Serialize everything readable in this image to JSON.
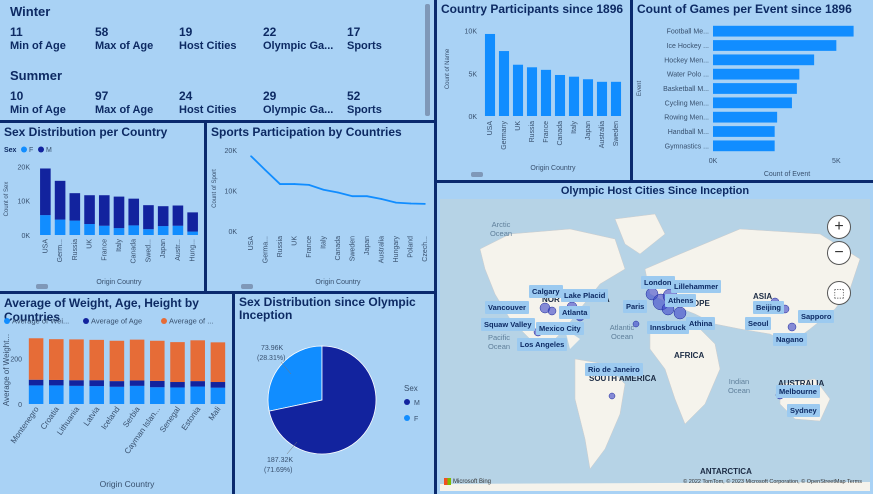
{
  "kpis": {
    "winter": {
      "title": "Winter",
      "items": [
        {
          "value": "11",
          "label": "Min of Age"
        },
        {
          "value": "58",
          "label": "Max of Age"
        },
        {
          "value": "19",
          "label": "Host Cities"
        },
        {
          "value": "22",
          "label": "Olympic Ga..."
        },
        {
          "value": "17",
          "label": "Sports"
        }
      ]
    },
    "summer": {
      "title": "Summer",
      "items": [
        {
          "value": "10",
          "label": "Min of Age"
        },
        {
          "value": "97",
          "label": "Max of Age"
        },
        {
          "value": "24",
          "label": "Host Cities"
        },
        {
          "value": "29",
          "label": "Olympic Ga..."
        },
        {
          "value": "52",
          "label": "Sports"
        }
      ]
    }
  },
  "colors": {
    "panel_bg": "#a9d2f5",
    "page_bg": "#0a2a6e",
    "bright_blue": "#118dff",
    "dark_blue": "#12239e",
    "orange": "#e66c37",
    "title": "#0d2a63"
  },
  "map": {
    "title": "Olympic Host Cities Since Inception",
    "cities": [
      "Calgary",
      "Lake Placid",
      "Vancouver",
      "Squaw Valley",
      "Atlanta",
      "Mexico City",
      "Los Angeles",
      "London",
      "Lillehammer",
      "Paris",
      "Athens",
      "Innsbruck",
      "Athina",
      "Beijing",
      "Seoul",
      "Sapporo",
      "Nagano",
      "Rio de Janeiro",
      "Melbourne",
      "Sydney"
    ],
    "regions": [
      "NORTH AMERICA",
      "EUROPE",
      "ASIA",
      "AFRICA",
      "SOUTH AMERICA",
      "AUSTRALIA",
      "ANTARCTICA"
    ],
    "oceans": [
      "Arctic Ocean",
      "Atlantic Ocean",
      "Pacific Ocean",
      "Indian Ocean"
    ],
    "footer": "© 2022 TomTom, © 2023 Microsoft Corporation, © OpenStreetMap  Terms",
    "brand": "Microsoft Bing",
    "controls": [
      "zoom-in",
      "zoom-out",
      "select"
    ]
  },
  "chart_data": [
    {
      "id": "country_participants",
      "type": "bar",
      "title": "Country Participants since 1896",
      "xlabel": "Origin Country",
      "ylabel": "Count of Name",
      "ylim": [
        0,
        11000
      ],
      "yticks": [
        "0K",
        "5K",
        "10K"
      ],
      "categories": [
        "USA",
        "Germany",
        "UK",
        "Russia",
        "France",
        "Canada",
        "Italy",
        "Japan",
        "Australia",
        "Sweden"
      ],
      "values": [
        9600,
        7600,
        6000,
        5700,
        5400,
        4800,
        4600,
        4300,
        4000,
        4000
      ]
    },
    {
      "id": "games_per_event",
      "type": "bar",
      "orientation": "horizontal",
      "title": "Count of Games per Event since 1896",
      "xlabel": "Count of Event",
      "ylabel": "Event",
      "xlim": [
        0,
        6000
      ],
      "xticks": [
        "0K",
        "5K"
      ],
      "categories": [
        "Football Me...",
        "Ice Hockey ...",
        "Hockey Men...",
        "Water Polo ...",
        "Basketball M...",
        "Cycling Men...",
        "Rowing Men...",
        "Handball M...",
        "Gymnastics ..."
      ],
      "values": [
        5700,
        5000,
        4100,
        3500,
        3400,
        3200,
        2600,
        2500,
        2500
      ]
    },
    {
      "id": "sex_per_country",
      "type": "bar",
      "stacked": true,
      "title": "Sex Distribution per Country",
      "legend_title": "Sex",
      "xlabel": "Origin Country",
      "ylabel": "Count of Sex",
      "ylim": [
        0,
        21000
      ],
      "yticks": [
        "0K",
        "10K",
        "20K"
      ],
      "categories": [
        "USA",
        "Germ...",
        "Russia",
        "UK",
        "France",
        "Italy",
        "Canada",
        "Swed...",
        "Japan",
        "Austr...",
        "Hung..."
      ],
      "series": [
        {
          "name": "F",
          "values": [
            5800,
            4500,
            4200,
            3200,
            2700,
            2000,
            2800,
            1700,
            2600,
            2700,
            1000
          ]
        },
        {
          "name": "M",
          "values": [
            13600,
            11300,
            8000,
            8400,
            8900,
            9200,
            7800,
            7000,
            5800,
            5900,
            5600
          ]
        }
      ]
    },
    {
      "id": "sports_participation",
      "type": "line",
      "title": "Sports Participation by Countries",
      "xlabel": "Origin Country",
      "ylabel": "Count of Sport",
      "ylim": [
        0,
        21000
      ],
      "yticks": [
        "0K",
        "10K",
        "20K"
      ],
      "categories": [
        "USA",
        "Germa...",
        "Russia",
        "UK",
        "France",
        "Italy",
        "Canada",
        "Sweden",
        "Japan",
        "Australia",
        "Hungary",
        "Poland",
        "Czech..."
      ],
      "values": [
        18500,
        15000,
        11600,
        11600,
        11400,
        10200,
        9500,
        8600,
        8600,
        7900,
        7000,
        6800,
        6700
      ]
    },
    {
      "id": "avg_weight_age_height",
      "type": "bar",
      "stacked": true,
      "title": "Average of Weight, Age, Height by Countries",
      "xlabel": "Origin Country",
      "ylabel": "Average of Weight...",
      "ylim": [
        0,
        300
      ],
      "yticks": [
        "0",
        "200"
      ],
      "categories": [
        "Montenegro",
        "Croatia",
        "Lithuania",
        "Latvia",
        "Iceland",
        "Serbia",
        "Cayman Islan...",
        "Senegal",
        "Estonia",
        "Mali"
      ],
      "series": [
        {
          "name": "Average of Wei...",
          "values": [
            82,
            82,
            80,
            79,
            76,
            80,
            74,
            73,
            77,
            72
          ]
        },
        {
          "name": "Average of Age",
          "values": [
            25,
            24,
            25,
            26,
            25,
            24,
            28,
            24,
            24,
            25
          ]
        },
        {
          "name": "Average of ...",
          "values": [
            183,
            180,
            180,
            178,
            178,
            180,
            177,
            176,
            180,
            175
          ]
        }
      ]
    },
    {
      "id": "sex_distribution_pie",
      "type": "pie",
      "title": "Sex Distribution since Olympic Inception",
      "legend_title": "Sex",
      "slices": [
        {
          "name": "M",
          "value": 187320,
          "label": "187.32K",
          "pct": "(71.69%)"
        },
        {
          "name": "F",
          "value": 73960,
          "label": "73.96K",
          "pct": "(28.31%)"
        }
      ]
    }
  ]
}
